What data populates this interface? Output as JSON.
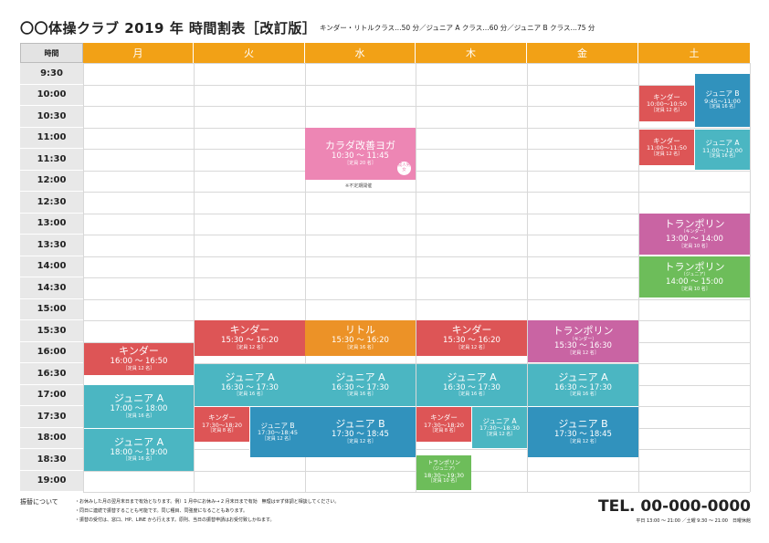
{
  "header": {
    "title": "〇〇体操クラブ 2019 年  時間割表［改訂版］",
    "subtitle": "キンダー・リトルクラス…50 分／ジュニア A クラス…60 分／ジュニア B クラス…75 分"
  },
  "grid": {
    "time_header": "時間",
    "days": [
      "月",
      "火",
      "水",
      "木",
      "金",
      "土"
    ],
    "times": [
      "9:30",
      "10:00",
      "10:30",
      "11:00",
      "11:30",
      "12:00",
      "12:30",
      "13:00",
      "13:30",
      "14:00",
      "14:30",
      "15:00",
      "15:30",
      "16:00",
      "16:30",
      "17:00",
      "17:30",
      "18:00",
      "18:30",
      "19:00"
    ]
  },
  "classes": {
    "mon_kinder": {
      "name": "キンダー",
      "time": "16:00 〜 16:50",
      "cap": "［定員 12 名］"
    },
    "mon_junA1": {
      "name": "ジュニア A",
      "time": "17:00 〜 18:00",
      "cap": "［定員 16 名］"
    },
    "mon_junA2": {
      "name": "ジュニア A",
      "time": "18:00 〜 19:00",
      "cap": "［定員 16 名］"
    },
    "tue_kinder": {
      "name": "キンダー",
      "time": "15:30 〜 16:20",
      "cap": "［定員 12 名］"
    },
    "tue_junA": {
      "name": "ジュニア A",
      "time": "16:30 〜 17:30",
      "cap": "［定員 16 名］"
    },
    "tue_kinder2": {
      "name": "キンダー",
      "time": "17:30〜18:20",
      "cap": "［定員 8 名］"
    },
    "tue_junB": {
      "name": "ジュニア B",
      "time": "17:30〜18:45",
      "cap": "［定員 12 名］"
    },
    "wed_yoga": {
      "name": "カラダ改善ヨガ",
      "time": "10:30 〜 11:45",
      "cap": "［定員 20 名］",
      "badge": "成人男女",
      "note": "※不定期開催"
    },
    "wed_little": {
      "name": "リトル",
      "time": "15:30 〜 16:20",
      "cap": "［定員 16 名］"
    },
    "wed_junA": {
      "name": "ジュニア A",
      "time": "16:30 〜 17:30",
      "cap": "［定員 16 名］"
    },
    "wed_junB": {
      "name": "ジュニア B",
      "time": "17:30 〜 18:45",
      "cap": "［定員 12 名］"
    },
    "thu_kinder": {
      "name": "キンダー",
      "time": "15:30 〜 16:20",
      "cap": "［定員 12 名］"
    },
    "thu_junA": {
      "name": "ジュニア A",
      "time": "16:30 〜 17:30",
      "cap": "［定員 16 名］"
    },
    "thu_kinder2": {
      "name": "キンダー",
      "time": "17:30〜18:20",
      "cap": "［定員 8 名］"
    },
    "thu_junA2": {
      "name": "ジュニア A",
      "time": "17:30〜18:30",
      "cap": "［定員 12 名］"
    },
    "thu_tramp": {
      "name": "トランポリン",
      "sub": "（ジュニア）",
      "time": "18:30〜19:30",
      "cap": "［定員 10 名］"
    },
    "fri_tramp": {
      "name": "トランポリン",
      "sub": "（キンダー）",
      "time": "15:30 〜 16:30",
      "cap": "［定員 12 名］"
    },
    "fri_junA": {
      "name": "ジュニア A",
      "time": "16:30 〜 17:30",
      "cap": "［定員 16 名］"
    },
    "fri_junB": {
      "name": "ジュニア B",
      "time": "17:30 〜 18:45",
      "cap": "［定員 12 名］"
    },
    "sat_kinder1": {
      "name": "キンダー",
      "time": "10:00〜10:50",
      "cap": "［定員 12 名］"
    },
    "sat_junB": {
      "name": "ジュニア B",
      "time": "9:45〜11:00",
      "cap": "［定員 16 名］"
    },
    "sat_kinder2": {
      "name": "キンダー",
      "time": "11:00〜11:50",
      "cap": "［定員 12 名］"
    },
    "sat_junA": {
      "name": "ジュニア A",
      "time": "11:00〜12:00",
      "cap": "［定員 16 名］"
    },
    "sat_tramp1": {
      "name": "トランポリン",
      "sub": "（キンダー）",
      "time": "13:00 〜 14:00",
      "cap": "［定員 10 名］"
    },
    "sat_tramp2": {
      "name": "トランポリン",
      "sub": "（ジュニア）",
      "time": "14:00 〜 15:00",
      "cap": "［定員 10 名］"
    }
  },
  "footer": {
    "label": "振替について",
    "notes": [
      "・お休みした月の翌月末日まで有効となります。例）1 月中にお休み→ 2 月末日まで有効　無理はせず体調と相談してください。",
      "・同日に連続で振替することも可能です。同じ種目、同強度になることもあります。",
      "・振替の受付は、窓口、HP、LINE から行えます。原則、当日の振替申請はお受付致しかねます。"
    ],
    "tel": "TEL. 00-000-0000",
    "hours": "平日 13:00 〜 21:00 ／土曜 9:30 〜 21:00　日曜休館"
  }
}
